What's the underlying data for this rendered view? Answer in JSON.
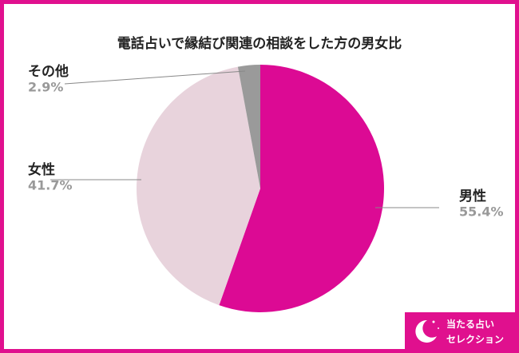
{
  "chart_data": {
    "type": "pie",
    "title": "電話占いで縁結び関連の相談をした方の男女比",
    "categories": [
      "男性",
      "女性",
      "その他"
    ],
    "values": [
      55.4,
      41.7,
      2.9
    ],
    "value_labels": [
      "55.4%",
      "41.7%",
      "2.9%"
    ],
    "colors": [
      "#dc0a94",
      "#e8d3dc",
      "#9a9a9a"
    ]
  },
  "logo": [
    "当たる占い",
    "セレクション"
  ]
}
